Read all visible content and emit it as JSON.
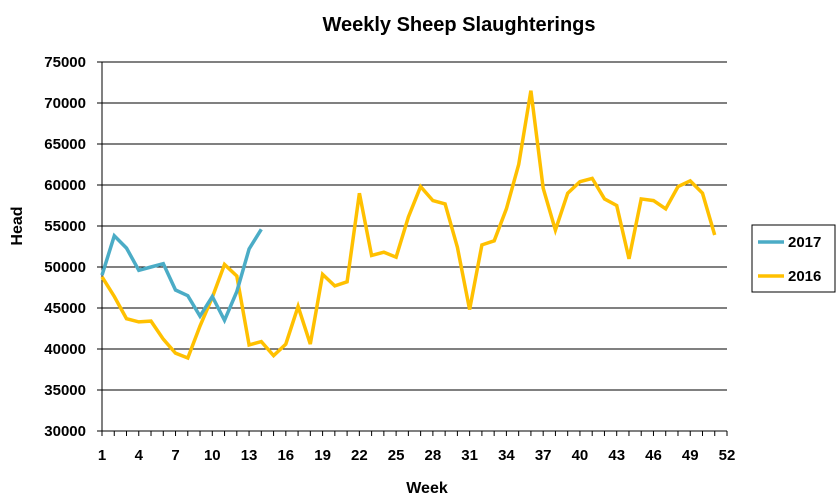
{
  "chart_data": {
    "type": "line",
    "title": "Weekly Sheep Slaughterings",
    "xlabel": "Week",
    "ylabel": "Head",
    "xlim": [
      1,
      52
    ],
    "ylim": [
      30000,
      75000
    ],
    "x_ticks": [
      1,
      4,
      7,
      10,
      13,
      16,
      19,
      22,
      25,
      28,
      31,
      34,
      37,
      40,
      43,
      46,
      49,
      52
    ],
    "y_ticks": [
      30000,
      35000,
      40000,
      45000,
      50000,
      55000,
      60000,
      65000,
      70000,
      75000
    ],
    "grid": "horizontal",
    "legend_position": "right",
    "series": [
      {
        "name": "2017",
        "color": "#4BACC6",
        "x": [
          1,
          2,
          3,
          4,
          5,
          6,
          7,
          8,
          9,
          10,
          11,
          12,
          13,
          14
        ],
        "values": [
          49000,
          53800,
          52300,
          49600,
          50000,
          50400,
          47200,
          46500,
          44000,
          46400,
          43500,
          47000,
          52200,
          54600
        ]
      },
      {
        "name": "2016",
        "color": "#FFC000",
        "x": [
          1,
          2,
          3,
          4,
          5,
          6,
          7,
          8,
          9,
          10,
          11,
          12,
          13,
          14,
          15,
          16,
          17,
          18,
          19,
          20,
          21,
          22,
          23,
          24,
          25,
          26,
          27,
          28,
          29,
          30,
          31,
          32,
          33,
          34,
          35,
          36,
          37,
          38,
          39,
          40,
          41,
          42,
          43,
          44,
          45,
          46,
          47,
          48,
          49,
          50,
          51
        ],
        "values": [
          48800,
          46400,
          43700,
          43300,
          43400,
          41200,
          39500,
          38900,
          42800,
          46300,
          50300,
          48900,
          40500,
          40900,
          39200,
          40600,
          45200,
          40600,
          49100,
          47700,
          48200,
          59000,
          51400,
          51800,
          51200,
          56100,
          59800,
          58100,
          57700,
          52400,
          44800,
          52700,
          53200,
          57100,
          62500,
          71500,
          59600,
          54500,
          59000,
          60400,
          60800,
          58300,
          57500,
          51000,
          58300,
          58100,
          57100,
          59800,
          60500,
          59000,
          53900
        ]
      }
    ]
  }
}
